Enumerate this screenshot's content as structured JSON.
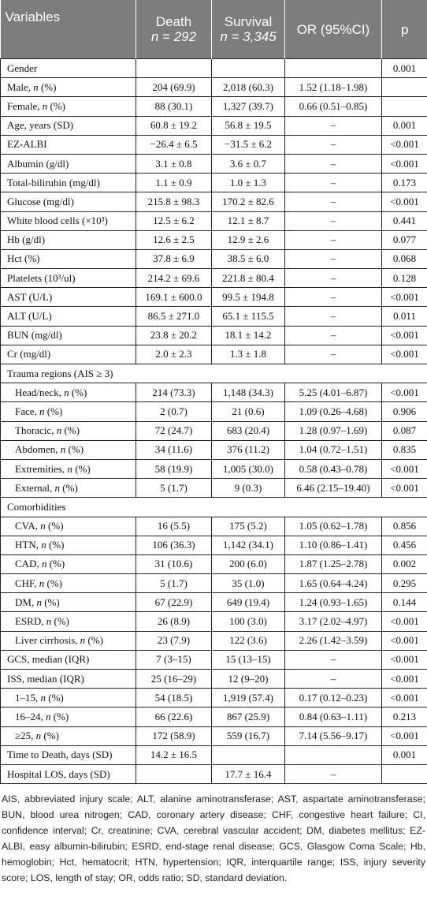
{
  "header": {
    "variables": "Variables",
    "death": "Death",
    "death_n": "n = 292",
    "survival": "Survival",
    "survival_n": "n = 3,345",
    "or": "OR (95%CI)",
    "p": "p"
  },
  "rows": [
    {
      "label": "Gender",
      "death": "",
      "survival": "",
      "or": "",
      "p": "0.001"
    },
    {
      "label": "Male, n (%)",
      "death": "204 (69.9)",
      "survival": "2,018 (60.3)",
      "or": "1.52 (1.18–1.98)",
      "p": ""
    },
    {
      "label": "Female, n (%)",
      "death": "88 (30.1)",
      "survival": "1,327 (39.7)",
      "or": "0.66 (0.51–0.85)",
      "p": ""
    },
    {
      "label": "Age, years (SD)",
      "death": "60.8 ± 19.2",
      "survival": "56.8 ± 19.5",
      "or": "–",
      "p": "0.001"
    },
    {
      "label": "EZ-ALBI",
      "death": "−26.4 ± 6.5",
      "survival": "−31.5 ± 6.2",
      "or": "–",
      "p": "<0.001"
    },
    {
      "label": "Albumin (g/dl)",
      "death": "3.1 ± 0.8",
      "survival": "3.6 ± 0.7",
      "or": "–",
      "p": "<0.001"
    },
    {
      "label": "Total-bilirubin (mg/dl)",
      "death": "1.1 ± 0.9",
      "survival": "1.0 ± 1.3",
      "or": "–",
      "p": "0.173"
    },
    {
      "label": "Glucose (mg/dl)",
      "death": "215.8 ± 98.3",
      "survival": "170.2 ± 82.6",
      "or": "–",
      "p": "<0.001"
    },
    {
      "label": "White blood cells (×10³)",
      "death": "12.5 ± 6.2",
      "survival": "12.1 ± 8.7",
      "or": "–",
      "p": "0.441"
    },
    {
      "label": "Hb (g/dl)",
      "death": "12.6 ± 2.5",
      "survival": "12.9 ± 2.6",
      "or": "–",
      "p": "0.077"
    },
    {
      "label": "Hct (%)",
      "death": "37.8 ± 6.9",
      "survival": "38.5 ± 6.0",
      "or": "–",
      "p": "0.068"
    },
    {
      "label": "Platelets (10³/ul)",
      "death": "214.2 ± 69.6",
      "survival": "221.8 ± 80.4",
      "or": "–",
      "p": "0.128"
    },
    {
      "label": "AST (U/L)",
      "death": "169.1 ± 600.0",
      "survival": "99.5 ± 194.8",
      "or": "–",
      "p": "<0.001"
    },
    {
      "label": "ALT (U/L)",
      "death": "86.5 ± 271.0",
      "survival": "65.1 ± 115.5",
      "or": "–",
      "p": "0.011"
    },
    {
      "label": "BUN (mg/dl)",
      "death": "23.8 ± 20.2",
      "survival": "18.1 ± 14.2",
      "or": "–",
      "p": "<0.001"
    },
    {
      "label": "Cr (mg/dl)",
      "death": "2.0 ± 2.3",
      "survival": "1.3 ± 1.8",
      "or": "–",
      "p": "<0.001"
    },
    {
      "label": "Trauma regions (AIS ≥ 3)",
      "death": "",
      "survival": "",
      "or": "",
      "p": ""
    },
    {
      "label": "Head/neck, n (%)",
      "death": "214 (73.3)",
      "survival": "1,148 (34.3)",
      "or": "5.25 (4.01–6.87)",
      "p": "<0.001"
    },
    {
      "label": "Face, n (%)",
      "death": "2 (0.7)",
      "survival": "21 (0.6)",
      "or": "1.09 (0.26–4.68)",
      "p": "0.906"
    },
    {
      "label": "Thoracic, n (%)",
      "death": "72 (24.7)",
      "survival": "683 (20.4)",
      "or": "1.28 (0.97–1.69)",
      "p": "0.087"
    },
    {
      "label": "Abdomen, n (%)",
      "death": "34 (11.6)",
      "survival": "376 (11.2)",
      "or": "1.04 (0.72–1.51)",
      "p": "0.835"
    },
    {
      "label": "Extremities, n (%)",
      "death": "58 (19.9)",
      "survival": "1,005 (30.0)",
      "or": "0.58 (0.43–0.78)",
      "p": "<0.001"
    },
    {
      "label": "External, n (%)",
      "death": "5 (1.7)",
      "survival": "9 (0.3)",
      "or": "6.46 (2.15–19.40)",
      "p": "<0.001"
    },
    {
      "label": "Comorbidities",
      "death": "",
      "survival": "",
      "or": "",
      "p": ""
    },
    {
      "label": "CVA, n (%)",
      "death": "16 (5.5)",
      "survival": "175 (5.2)",
      "or": "1.05 (0.62–1.78)",
      "p": "0.856"
    },
    {
      "label": "HTN, n (%)",
      "death": "106 (36.3)",
      "survival": "1,142 (34.1)",
      "or": "1.10 (0.86–1.41)",
      "p": "0.456"
    },
    {
      "label": "CAD, n (%)",
      "death": "31 (10.6)",
      "survival": "200 (6.0)",
      "or": "1.87 (1.25–2.78)",
      "p": "0.002"
    },
    {
      "label": "CHF, n (%)",
      "death": "5 (1.7)",
      "survival": "35 (1.0)",
      "or": "1.65 (0.64–4.24)",
      "p": "0.295"
    },
    {
      "label": "DM, n (%)",
      "death": "67 (22.9)",
      "survival": "649 (19.4)",
      "or": "1.24 (0.93–1.65)",
      "p": "0.144"
    },
    {
      "label": "ESRD, n (%)",
      "death": "26 (8.9)",
      "survival": "100 (3.0)",
      "or": "3.17 (2.02–4.97)",
      "p": "<0.001"
    },
    {
      "label": "Liver cirrhosis, n (%)",
      "death": "23 (7.9)",
      "survival": "122 (3.6)",
      "or": "2.26 (1.42–3.59)",
      "p": "<0.001"
    },
    {
      "label": "GCS, median (IQR)",
      "death": "7 (3–15)",
      "survival": "15 (13–15)",
      "or": "–",
      "p": "<0.001"
    },
    {
      "label": "ISS, median (IQR)",
      "death": "25 (16–29)",
      "survival": "12 (9–20)",
      "or": "–",
      "p": "<0.001"
    },
    {
      "label": "1–15, n (%)",
      "death": "54 (18.5)",
      "survival": "1,919 (57.4)",
      "or": "0.17 (0.12–0.23)",
      "p": "<0.001"
    },
    {
      "label": "16–24, n (%)",
      "death": "66 (22.6)",
      "survival": "867 (25.9)",
      "or": "0.84 (0.63–1.11)",
      "p": "0.213"
    },
    {
      "label": "≥25, n (%)",
      "death": "172 (58.9)",
      "survival": "559 (16.7)",
      "or": "7.14 (5.56–9.17)",
      "p": "<0.001"
    },
    {
      "label": "Time to Death, days (SD)",
      "death": "14.2 ± 16.5",
      "survival": "",
      "or": "",
      "p": "0.001"
    },
    {
      "label": "Hospital LOS, days (SD)",
      "death": "",
      "survival": "17.7 ± 16.4",
      "or": "–",
      "p": ""
    }
  ],
  "footnote": "AIS, abbreviated injury scale; ALT, alanine aminotransferase; AST, aspartate aminotransferase; BUN, blood urea nitrogen; CAD, coronary artery disease; CHF, congestive heart failure; CI, confidence interval; Cr, creatinine; CVA, cerebral vascular accident; DM, diabetes mellitus; EZ-ALBI, easy albumin-bilirubin; ESRD, end-stage renal disease; GCS, Glasgow Coma Scale; Hb, hemoglobin; Hct, hematocrit; HTN, hypertension; IQR, interquartile range; ISS, injury severity score; LOS, length of stay; OR, odds ratio; SD, standard deviation."
}
